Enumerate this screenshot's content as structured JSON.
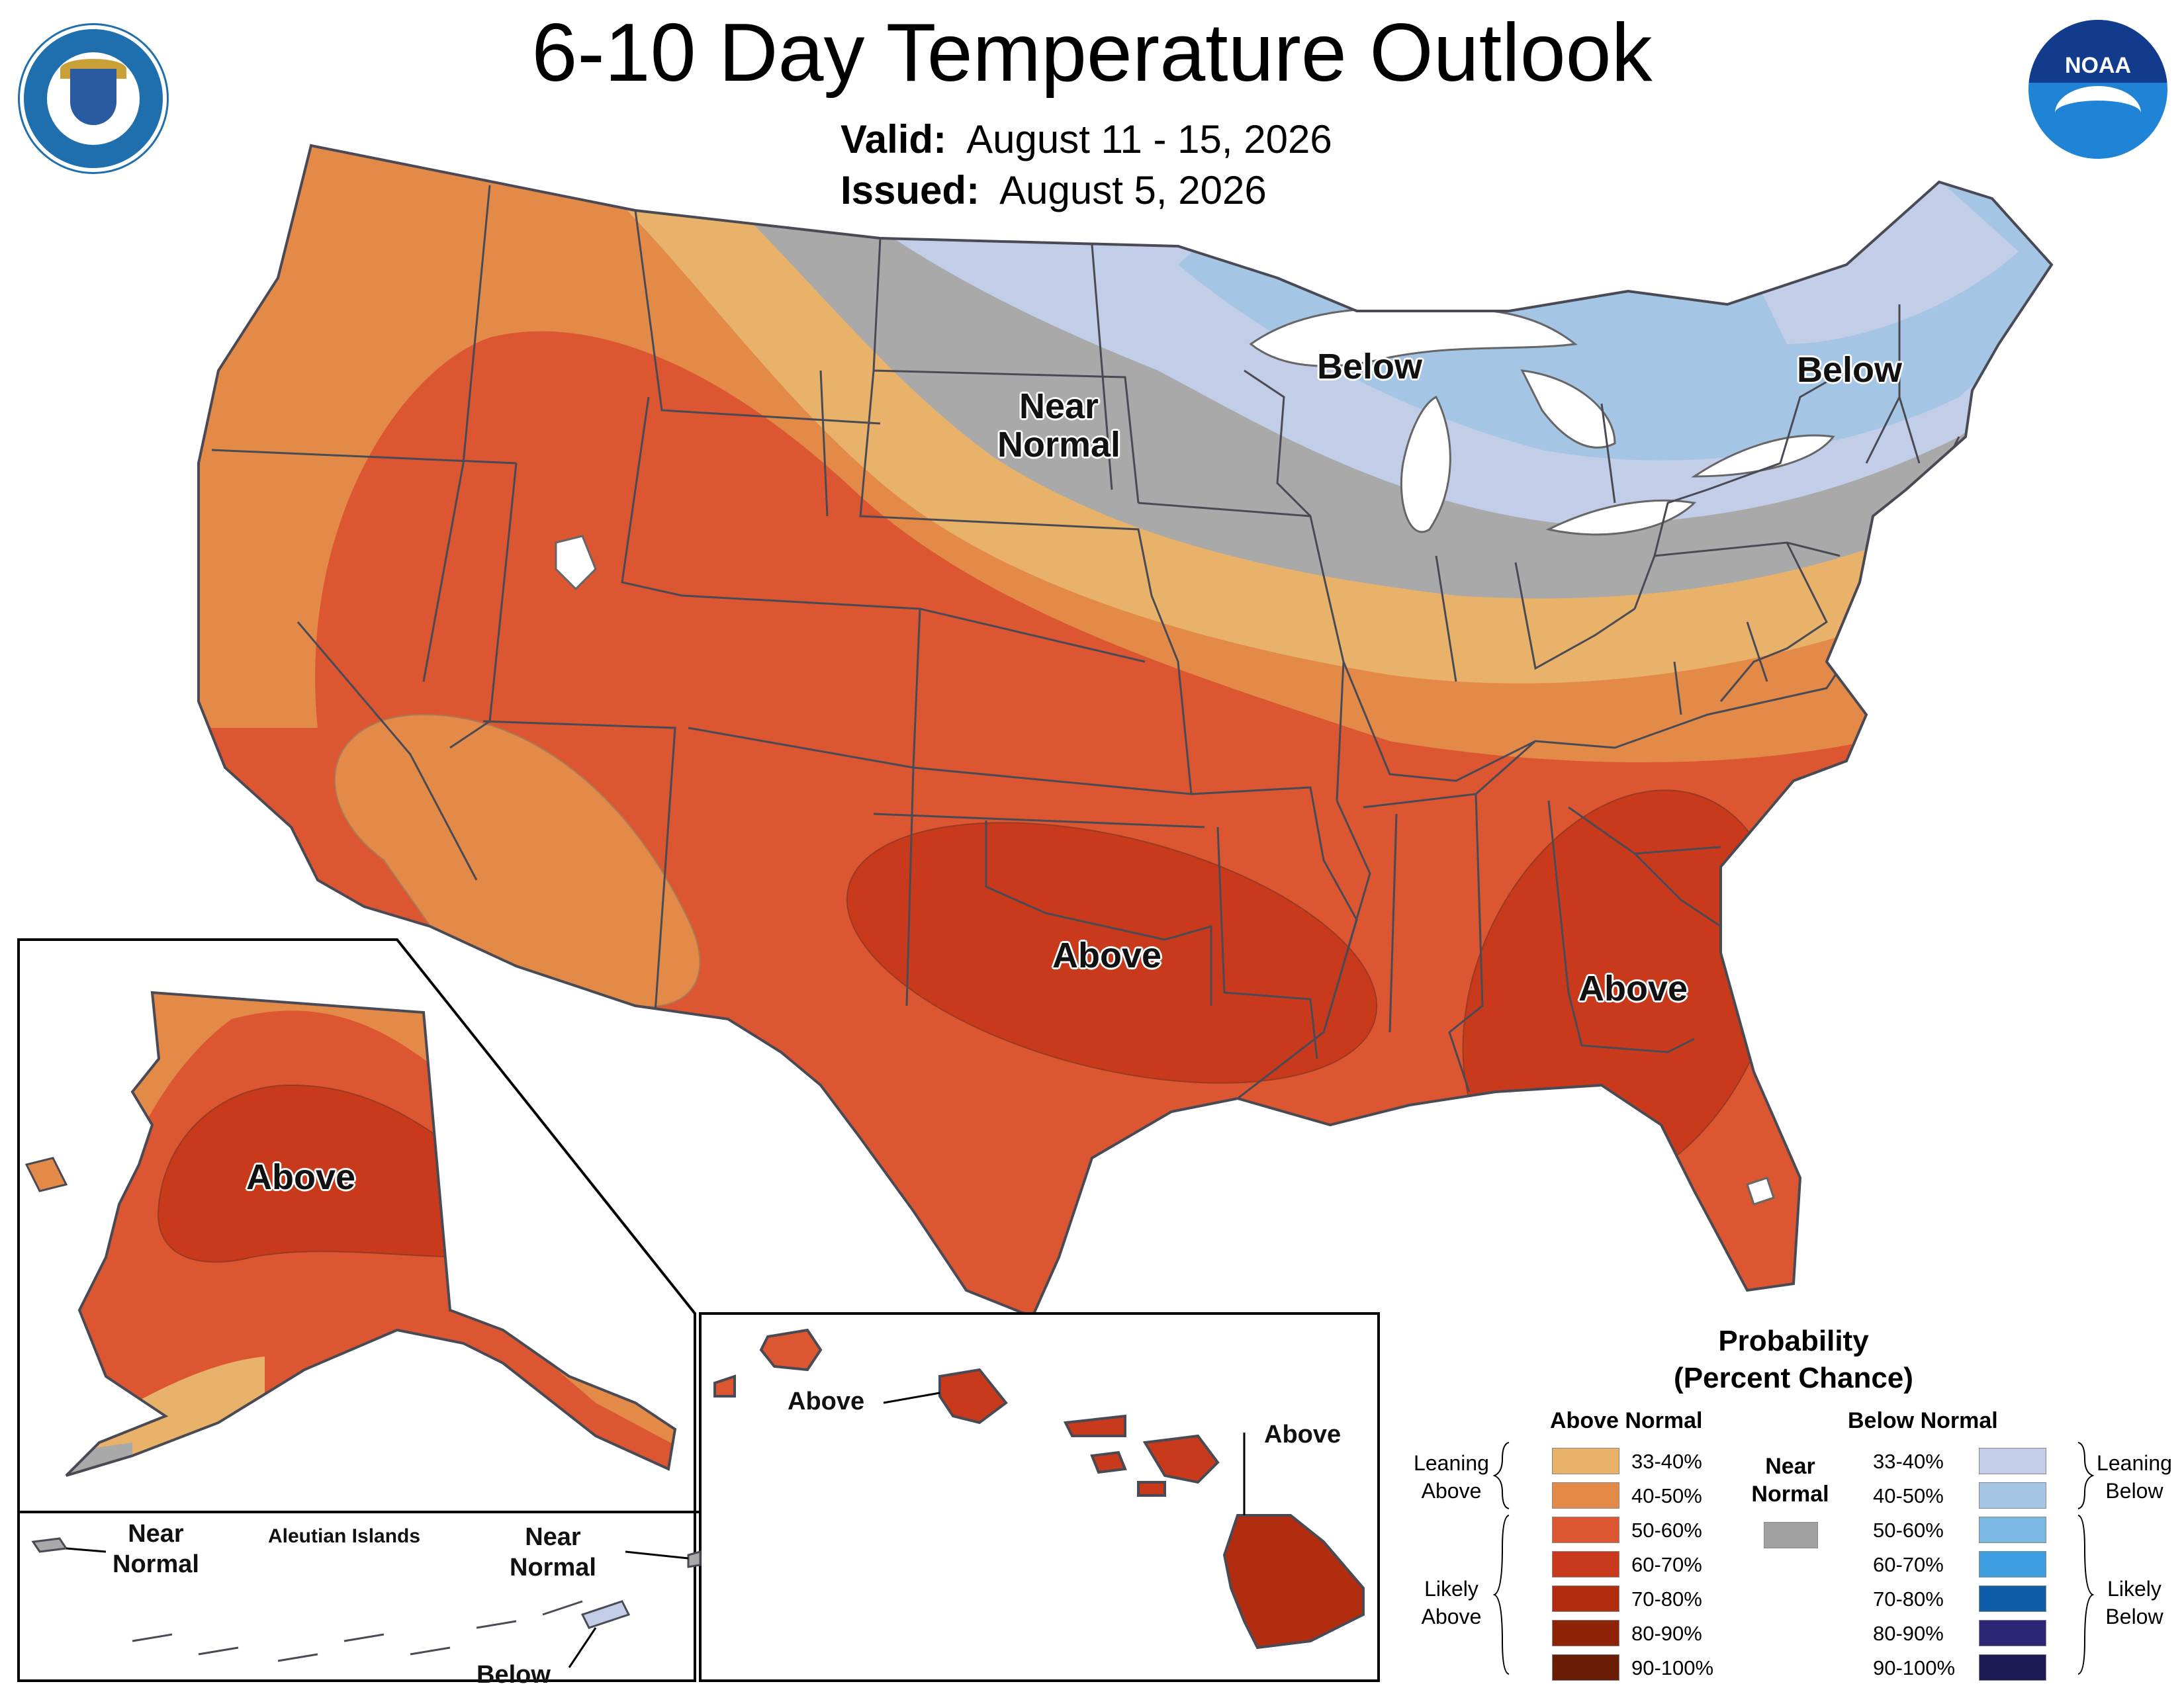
{
  "header": {
    "title": "6-10 Day Temperature Outlook",
    "valid_label": "Valid:",
    "valid_value": "August 11 - 15, 2026",
    "issued_label": "Issued:",
    "issued_value": "August 5, 2026"
  },
  "logos": {
    "noaa_text": "NOAA"
  },
  "map_labels": {
    "conus_below_great_lakes": "Below",
    "conus_below_northeast": "Below",
    "conus_near_normal_1": "Near",
    "conus_near_normal_2": "Normal",
    "conus_above_south_central": "Above",
    "conus_above_southeast": "Above",
    "alaska_above": "Above",
    "aleutian_title": "Aleutian Islands",
    "aleutian_near_normal_west_1": "Near",
    "aleutian_near_normal_west_2": "Normal",
    "aleutian_near_normal_east_1": "Near",
    "aleutian_near_normal_east_2": "Normal",
    "aleutian_below": "Below",
    "hawaii_above_west": "Above",
    "hawaii_above_east": "Above"
  },
  "legend": {
    "title_1": "Probability",
    "title_2": "(Percent Chance)",
    "above_header": "Above Normal",
    "below_header": "Below Normal",
    "near_normal_1": "Near",
    "near_normal_2": "Normal",
    "leaning_above_1": "Leaning",
    "leaning_above_2": "Above",
    "likely_above_1": "Likely",
    "likely_above_2": "Above",
    "leaning_below_1": "Leaning",
    "leaning_below_2": "Below",
    "likely_below_1": "Likely",
    "likely_below_2": "Below",
    "above_rows": [
      {
        "label": "33-40%",
        "color": "#e8b26a"
      },
      {
        "label": "40-50%",
        "color": "#e48a49"
      },
      {
        "label": "50-60%",
        "color": "#dc5632"
      },
      {
        "label": "60-70%",
        "color": "#c93a1c"
      },
      {
        "label": "70-80%",
        "color": "#b22c0f"
      },
      {
        "label": "80-90%",
        "color": "#8f2307"
      },
      {
        "label": "90-100%",
        "color": "#6b1c04"
      }
    ],
    "below_rows": [
      {
        "label": "33-40%",
        "color": "#c2cde8"
      },
      {
        "label": "40-50%",
        "color": "#a5c5e4"
      },
      {
        "label": "50-60%",
        "color": "#7ab8e4"
      },
      {
        "label": "60-70%",
        "color": "#3d9ee0"
      },
      {
        "label": "70-80%",
        "color": "#0e5da8"
      },
      {
        "label": "80-90%",
        "color": "#2d2575"
      },
      {
        "label": "90-100%",
        "color": "#1e1a55"
      }
    ],
    "near_normal_color": "#a0a0a0"
  }
}
